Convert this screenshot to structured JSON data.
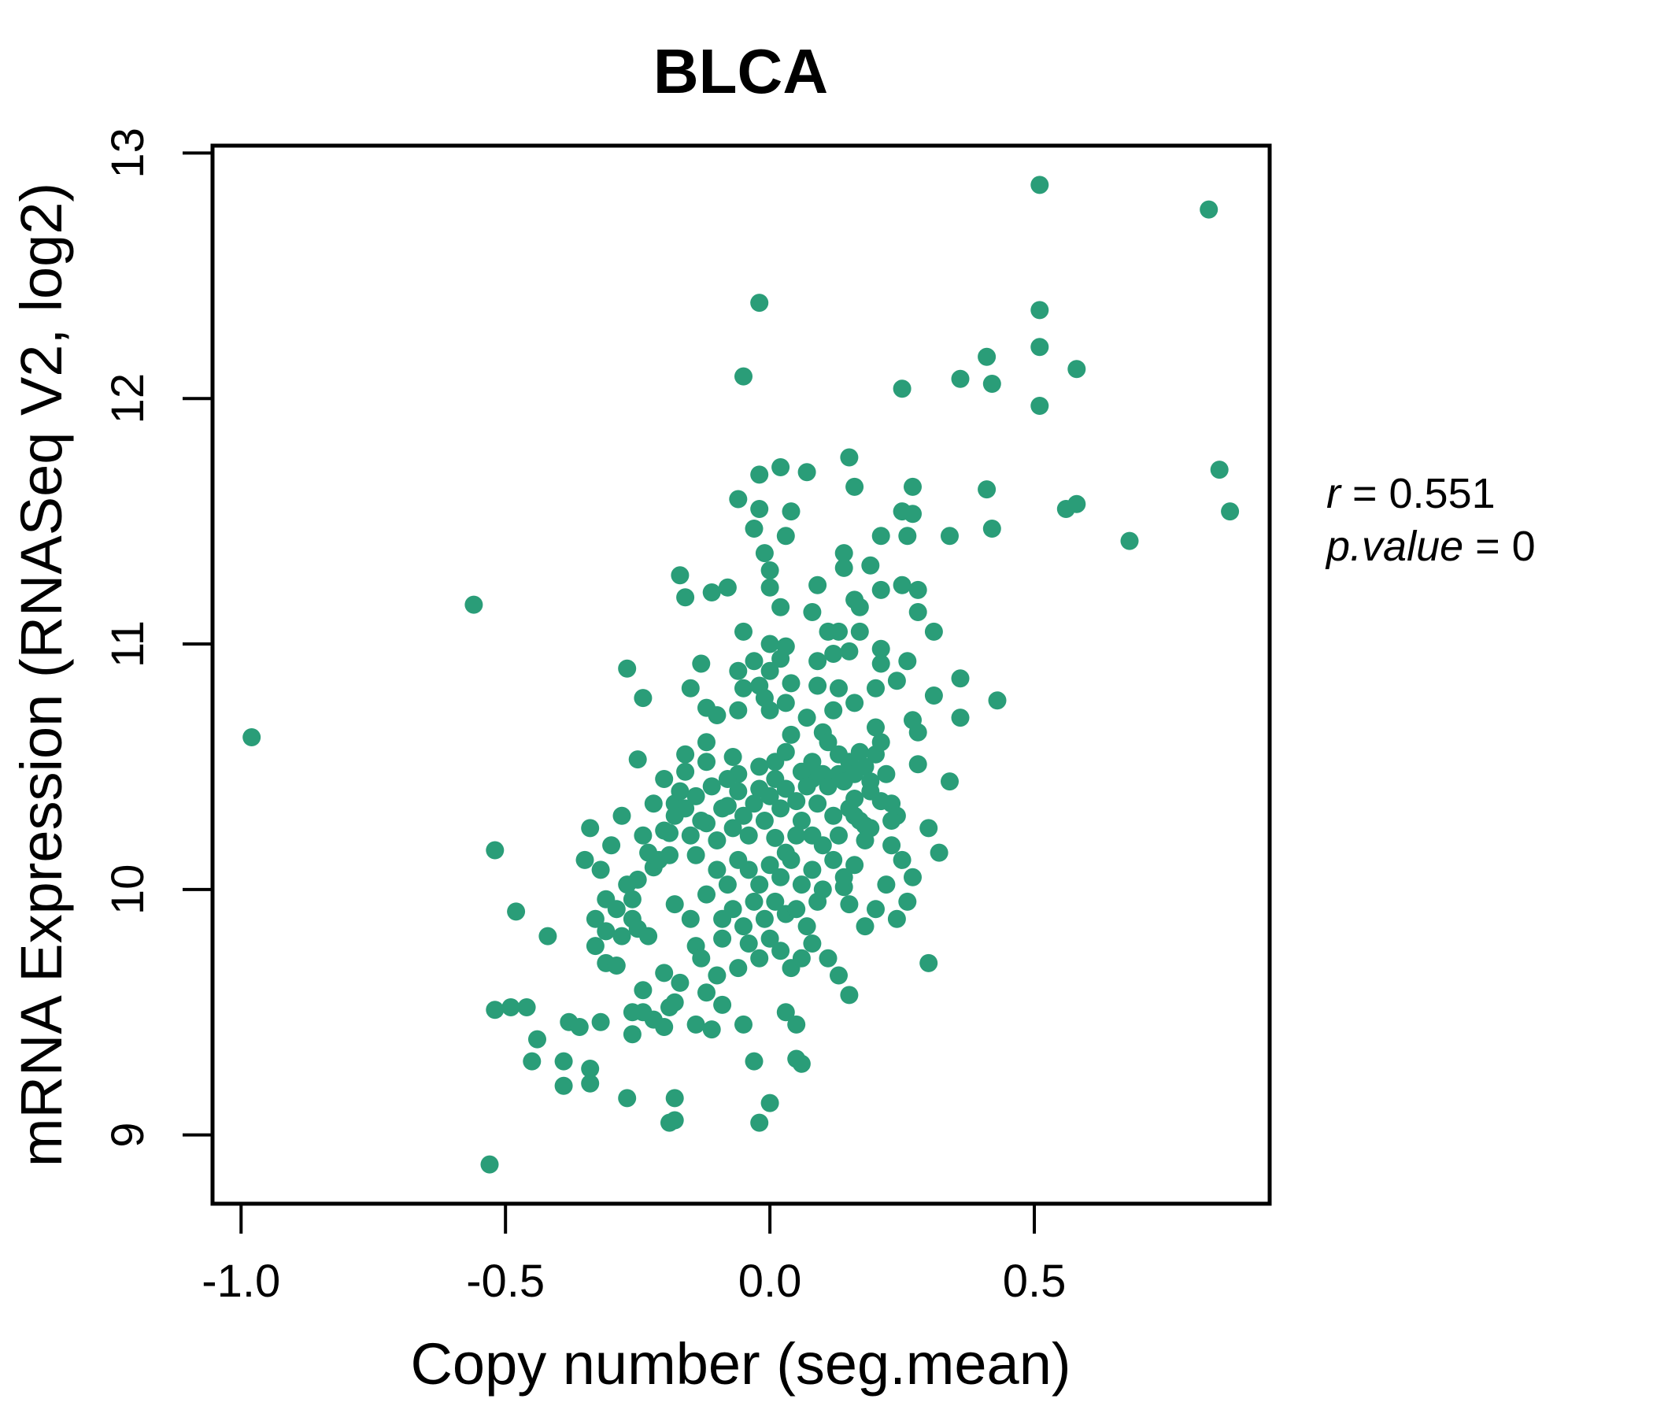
{
  "chart_data": {
    "type": "scatter",
    "title": "BLCA",
    "title_color": "#2aa37f",
    "point_color": "#2a9d78",
    "xlabel": "Copy number (seg.mean)",
    "ylabel": "mRNA Expression (RNASeq V2, log2)",
    "xlim": [
      -1.054,
      0.945
    ],
    "ylim": [
      8.72,
      13.03
    ],
    "grid": false,
    "legend": "none",
    "x_ticks": [
      -1.0,
      -0.5,
      0.0,
      0.5
    ],
    "x_tick_labels": [
      "-1.0",
      "-0.5",
      "0.0",
      "0.5"
    ],
    "y_ticks": [
      9,
      10,
      11,
      12,
      13
    ],
    "y_tick_labels": [
      "9",
      "10",
      "11",
      "12",
      "13"
    ],
    "annotation": {
      "line1_var": "r",
      "line1_eq": " = 0.551",
      "line2_var": "p.value",
      "line2_eq": " = 0"
    },
    "points": [
      [
        -0.98,
        10.62
      ],
      [
        -0.56,
        11.16
      ],
      [
        -0.52,
        10.16
      ],
      [
        -0.53,
        8.88
      ],
      [
        -0.52,
        9.51
      ],
      [
        -0.48,
        9.91
      ],
      [
        -0.46,
        9.52
      ],
      [
        -0.44,
        9.39
      ],
      [
        -0.02,
        12.39
      ],
      [
        -0.05,
        12.09
      ],
      [
        0.51,
        12.87
      ],
      [
        0.83,
        12.77
      ],
      [
        0.51,
        12.36
      ],
      [
        0.51,
        12.21
      ],
      [
        0.41,
        12.17
      ],
      [
        0.36,
        12.08
      ],
      [
        0.42,
        12.06
      ],
      [
        0.58,
        12.12
      ],
      [
        0.25,
        12.04
      ],
      [
        0.51,
        11.97
      ],
      [
        0.85,
        11.71
      ],
      [
        0.87,
        11.54
      ],
      [
        0.27,
        11.64
      ],
      [
        0.41,
        11.63
      ],
      [
        0.56,
        11.55
      ],
      [
        0.68,
        11.42
      ],
      [
        0.34,
        11.44
      ],
      [
        0.58,
        11.57
      ],
      [
        -0.06,
        11.59
      ],
      [
        -0.02,
        11.69
      ],
      [
        0.02,
        11.72
      ],
      [
        -0.02,
        11.55
      ],
      [
        0.04,
        11.54
      ],
      [
        -0.03,
        11.47
      ],
      [
        0.03,
        11.44
      ],
      [
        -0.01,
        11.37
      ],
      [
        0.0,
        11.3
      ],
      [
        -0.17,
        11.28
      ],
      [
        -0.16,
        11.19
      ],
      [
        -0.11,
        11.21
      ],
      [
        -0.08,
        11.23
      ],
      [
        0.0,
        11.23
      ],
      [
        0.02,
        11.15
      ],
      [
        -0.05,
        11.05
      ],
      [
        0.0,
        11.0
      ],
      [
        0.03,
        10.99
      ],
      [
        0.07,
        11.7
      ],
      [
        0.15,
        11.76
      ],
      [
        0.16,
        11.64
      ],
      [
        0.25,
        11.54
      ],
      [
        0.27,
        11.53
      ],
      [
        0.21,
        11.44
      ],
      [
        0.26,
        11.44
      ],
      [
        0.42,
        11.47
      ],
      [
        0.14,
        11.37
      ],
      [
        0.14,
        11.31
      ],
      [
        0.19,
        11.32
      ],
      [
        0.09,
        11.24
      ],
      [
        0.21,
        11.22
      ],
      [
        0.25,
        11.24
      ],
      [
        0.28,
        11.22
      ],
      [
        0.16,
        11.18
      ],
      [
        0.17,
        11.15
      ],
      [
        0.08,
        11.13
      ],
      [
        0.28,
        11.13
      ],
      [
        0.11,
        11.05
      ],
      [
        0.13,
        11.05
      ],
      [
        0.17,
        11.05
      ],
      [
        0.31,
        11.05
      ],
      [
        -0.27,
        10.9
      ],
      [
        -0.13,
        10.92
      ],
      [
        -0.06,
        10.89
      ],
      [
        -0.03,
        10.93
      ],
      [
        0.0,
        10.89
      ],
      [
        0.02,
        10.94
      ],
      [
        -0.24,
        10.78
      ],
      [
        -0.15,
        10.82
      ],
      [
        0.09,
        10.93
      ],
      [
        0.12,
        10.96
      ],
      [
        0.15,
        10.97
      ],
      [
        0.21,
        10.98
      ],
      [
        0.21,
        10.92
      ],
      [
        0.26,
        10.93
      ],
      [
        0.09,
        10.83
      ],
      [
        0.13,
        10.82
      ],
      [
        0.2,
        10.82
      ],
      [
        0.24,
        10.85
      ],
      [
        0.36,
        10.86
      ],
      [
        0.31,
        10.79
      ],
      [
        -0.12,
        10.74
      ],
      [
        -0.1,
        10.71
      ],
      [
        -0.06,
        10.73
      ],
      [
        -0.05,
        10.82
      ],
      [
        -0.02,
        10.83
      ],
      [
        -0.01,
        10.78
      ],
      [
        0.0,
        10.73
      ],
      [
        0.03,
        10.76
      ],
      [
        0.04,
        10.84
      ],
      [
        0.12,
        10.73
      ],
      [
        0.16,
        10.76
      ],
      [
        0.07,
        10.7
      ],
      [
        0.43,
        10.77
      ],
      [
        0.36,
        10.7
      ],
      [
        0.2,
        10.66
      ],
      [
        0.27,
        10.69
      ],
      [
        0.28,
        10.64
      ],
      [
        0.1,
        10.64
      ],
      [
        0.11,
        10.6
      ],
      [
        -0.12,
        10.6
      ],
      [
        -0.07,
        10.54
      ],
      [
        -0.25,
        10.53
      ],
      [
        -0.16,
        10.48
      ],
      [
        -0.06,
        10.47
      ],
      [
        -0.02,
        10.5
      ],
      [
        0.01,
        10.52
      ],
      [
        0.03,
        10.56
      ],
      [
        0.04,
        10.63
      ],
      [
        0.17,
        10.56
      ],
      [
        0.28,
        10.51
      ],
      [
        0.34,
        10.44
      ],
      [
        0.13,
        10.47
      ],
      [
        0.08,
        10.45
      ],
      [
        -0.18,
        10.35
      ],
      [
        -0.08,
        10.34
      ],
      [
        0.16,
        10.37
      ],
      [
        0.23,
        10.35
      ],
      [
        0.19,
        10.4
      ],
      [
        0.24,
        10.3
      ],
      [
        0.16,
        10.3
      ],
      [
        0.18,
        10.26
      ],
      [
        0.19,
        10.25
      ],
      [
        0.23,
        10.18
      ],
      [
        0.16,
        10.1
      ],
      [
        0.14,
        10.01
      ],
      [
        0.15,
        9.94
      ],
      [
        -0.34,
        10.25
      ],
      [
        -0.16,
        10.33
      ],
      [
        -0.2,
        10.24
      ],
      [
        -0.19,
        10.23
      ],
      [
        -0.23,
        10.15
      ],
      [
        -0.19,
        10.14
      ],
      [
        -0.14,
        10.14
      ],
      [
        -0.12,
        10.27
      ],
      [
        -0.22,
        10.09
      ],
      [
        -0.25,
        10.04
      ],
      [
        -0.27,
        10.02
      ],
      [
        -0.31,
        9.96
      ],
      [
        -0.26,
        9.96
      ],
      [
        -0.26,
        9.88
      ],
      [
        -0.18,
        9.94
      ],
      [
        -0.15,
        9.88
      ],
      [
        -0.42,
        9.81
      ],
      [
        -0.33,
        9.77
      ],
      [
        -0.31,
        9.83
      ],
      [
        -0.28,
        9.81
      ],
      [
        -0.25,
        9.84
      ],
      [
        -0.23,
        9.81
      ],
      [
        -0.14,
        9.77
      ],
      [
        -0.09,
        9.8
      ],
      [
        -0.31,
        9.7
      ],
      [
        -0.29,
        9.69
      ],
      [
        -0.2,
        9.66
      ],
      [
        -0.17,
        9.62
      ],
      [
        -0.24,
        9.59
      ],
      [
        -0.18,
        9.54
      ],
      [
        -0.12,
        9.58
      ],
      [
        -0.09,
        9.53
      ],
      [
        0.3,
        9.7
      ],
      [
        0.15,
        9.57
      ],
      [
        -0.49,
        9.52
      ],
      [
        -0.38,
        9.46
      ],
      [
        -0.36,
        9.44
      ],
      [
        -0.32,
        9.46
      ],
      [
        -0.26,
        9.5
      ],
      [
        -0.24,
        9.5
      ],
      [
        -0.19,
        9.52
      ],
      [
        -0.22,
        9.47
      ],
      [
        -0.2,
        9.44
      ],
      [
        -0.14,
        9.45
      ],
      [
        -0.26,
        9.41
      ],
      [
        -0.11,
        9.43
      ],
      [
        -0.05,
        9.45
      ],
      [
        0.05,
        9.45
      ],
      [
        0.03,
        9.5
      ],
      [
        -0.45,
        9.3
      ],
      [
        -0.39,
        9.3
      ],
      [
        -0.39,
        9.2
      ],
      [
        -0.34,
        9.27
      ],
      [
        -0.34,
        9.21
      ],
      [
        -0.27,
        9.15
      ],
      [
        -0.18,
        9.15
      ],
      [
        -0.18,
        9.06
      ],
      [
        -0.19,
        9.05
      ],
      [
        -0.03,
        9.3
      ],
      [
        0.05,
        9.31
      ],
      [
        0.06,
        9.29
      ],
      [
        0.0,
        9.13
      ],
      [
        -0.02,
        9.05
      ],
      [
        -0.02,
        10.41
      ],
      [
        0.0,
        10.38
      ],
      [
        0.01,
        10.45
      ],
      [
        0.02,
        10.33
      ],
      [
        0.03,
        10.41
      ],
      [
        0.05,
        10.36
      ],
      [
        0.06,
        10.48
      ],
      [
        0.06,
        10.28
      ],
      [
        0.07,
        10.42
      ],
      [
        0.08,
        10.52
      ],
      [
        0.08,
        10.22
      ],
      [
        0.09,
        10.35
      ],
      [
        0.1,
        10.47
      ],
      [
        0.1,
        10.18
      ],
      [
        0.11,
        10.42
      ],
      [
        0.12,
        10.3
      ],
      [
        0.13,
        10.55
      ],
      [
        0.13,
        10.22
      ],
      [
        0.14,
        10.44
      ],
      [
        0.15,
        10.33
      ],
      [
        0.15,
        10.52
      ],
      [
        0.16,
        10.47
      ],
      [
        0.17,
        10.28
      ],
      [
        0.18,
        10.5
      ],
      [
        0.18,
        10.2
      ],
      [
        0.19,
        10.44
      ],
      [
        0.2,
        10.55
      ],
      [
        0.21,
        10.36
      ],
      [
        0.22,
        10.47
      ],
      [
        0.23,
        10.28
      ],
      [
        0.05,
        10.22
      ],
      [
        0.03,
        10.15
      ],
      [
        0.01,
        10.21
      ],
      [
        -0.01,
        10.28
      ],
      [
        -0.03,
        10.35
      ],
      [
        -0.04,
        10.22
      ],
      [
        -0.05,
        10.3
      ],
      [
        -0.06,
        10.4
      ],
      [
        -0.07,
        10.25
      ],
      [
        -0.08,
        10.45
      ],
      [
        -0.09,
        10.33
      ],
      [
        -0.1,
        10.2
      ],
      [
        -0.11,
        10.42
      ],
      [
        -0.12,
        10.52
      ],
      [
        -0.13,
        10.28
      ],
      [
        -0.14,
        10.38
      ],
      [
        -0.15,
        10.22
      ],
      [
        -0.16,
        10.55
      ],
      [
        -0.17,
        10.4
      ],
      [
        -0.18,
        10.3
      ],
      [
        0.0,
        10.1
      ],
      [
        0.02,
        10.05
      ],
      [
        0.04,
        10.12
      ],
      [
        0.06,
        10.02
      ],
      [
        0.08,
        10.08
      ],
      [
        0.1,
        10.0
      ],
      [
        -0.02,
        10.02
      ],
      [
        -0.04,
        10.08
      ],
      [
        -0.06,
        10.12
      ],
      [
        -0.08,
        10.02
      ],
      [
        -0.1,
        10.08
      ],
      [
        -0.12,
        9.98
      ],
      [
        0.12,
        10.12
      ],
      [
        0.14,
        10.05
      ],
      [
        0.01,
        9.95
      ],
      [
        0.03,
        9.9
      ],
      [
        -0.01,
        9.88
      ],
      [
        -0.03,
        9.95
      ],
      [
        -0.05,
        9.85
      ],
      [
        0.05,
        9.92
      ],
      [
        0.07,
        9.85
      ],
      [
        0.09,
        9.95
      ],
      [
        -0.07,
        9.92
      ],
      [
        -0.09,
        9.88
      ],
      [
        0.0,
        9.8
      ],
      [
        0.02,
        9.75
      ],
      [
        -0.02,
        9.72
      ],
      [
        0.04,
        9.68
      ],
      [
        -0.04,
        9.78
      ],
      [
        0.06,
        9.72
      ],
      [
        -0.06,
        9.68
      ],
      [
        0.08,
        9.78
      ],
      [
        -0.2,
        10.45
      ],
      [
        -0.22,
        10.35
      ],
      [
        -0.24,
        10.22
      ],
      [
        -0.21,
        10.12
      ],
      [
        -0.28,
        10.3
      ],
      [
        -0.3,
        10.18
      ],
      [
        -0.32,
        10.08
      ],
      [
        -0.35,
        10.12
      ],
      [
        -0.29,
        9.92
      ],
      [
        -0.33,
        9.88
      ],
      [
        0.25,
        10.12
      ],
      [
        0.27,
        10.05
      ],
      [
        0.22,
        10.02
      ],
      [
        0.26,
        9.95
      ],
      [
        0.24,
        9.88
      ],
      [
        0.2,
        9.92
      ],
      [
        0.18,
        9.85
      ],
      [
        0.3,
        10.25
      ],
      [
        0.32,
        10.15
      ],
      [
        0.11,
        9.72
      ],
      [
        0.13,
        9.65
      ],
      [
        -0.1,
        9.65
      ],
      [
        -0.13,
        9.72
      ],
      [
        0.21,
        10.6
      ]
    ]
  }
}
